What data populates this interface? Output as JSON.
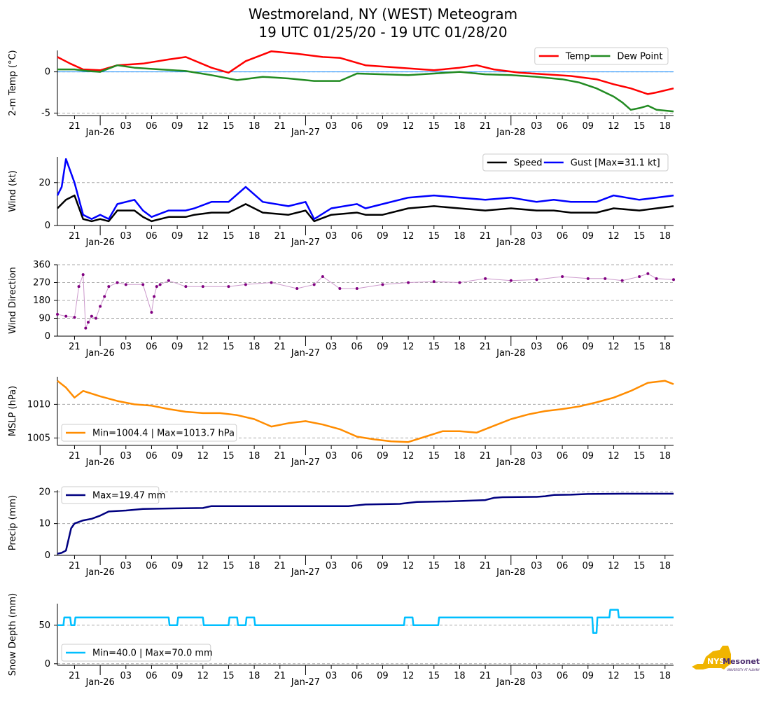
{
  "title": {
    "line1": "Westmoreland, NY (WEST) Meteogram",
    "line2": "19 UTC 01/25/20 - 19 UTC 01/28/20"
  },
  "logo": {
    "text": "NYS Mesonet",
    "subtext": "UNIVERSITY AT ALBANY"
  },
  "colors": {
    "temp": "#ff0000",
    "dew": "#228b22",
    "speed": "#000000",
    "gust": "#0000ff",
    "dir": "#800080",
    "mslp": "#ff8c00",
    "precip": "#000080",
    "snow": "#00bfff",
    "zero": "#1e90ff"
  },
  "x_axis": {
    "hour_ticks": [
      "21",
      "03",
      "06",
      "09",
      "12",
      "15",
      "18",
      "21",
      "03",
      "06",
      "09",
      "12",
      "15",
      "18",
      "21",
      "03",
      "06",
      "09",
      "12",
      "15",
      "18"
    ],
    "hour_offsets": [
      2,
      8,
      11,
      14,
      17,
      20,
      23,
      26,
      32,
      35,
      38,
      41,
      44,
      47,
      50,
      56,
      59,
      62,
      65,
      68,
      71
    ],
    "day_ticks": [
      "Jan-26",
      "Jan-27",
      "Jan-28"
    ],
    "day_offsets": [
      5,
      29,
      53
    ],
    "range_hours": [
      0,
      72
    ]
  },
  "chart_data": [
    {
      "type": "line",
      "ylabel": "2-m Temp ($^\\circ$C)",
      "ylim": [
        -5.3,
        2.6
      ],
      "yticks": [
        0,
        -5
      ],
      "legend": [
        "Temp",
        "Dew Point"
      ],
      "series": [
        {
          "name": "Temp",
          "x": [
            0,
            1.5,
            3,
            5,
            7,
            10,
            13,
            15,
            18,
            20,
            22,
            25,
            28,
            31,
            33,
            36,
            40,
            44,
            47,
            49,
            51,
            54,
            57,
            60,
            63,
            65,
            67,
            69,
            70,
            72
          ],
          "values": [
            1.8,
            1.0,
            0.3,
            0.2,
            0.8,
            1.0,
            1.5,
            1.8,
            0.5,
            -0.1,
            1.3,
            2.5,
            2.2,
            1.8,
            1.7,
            0.8,
            0.5,
            0.2,
            0.5,
            0.8,
            0.3,
            -0.1,
            -0.3,
            -0.5,
            -0.9,
            -1.5,
            -2.0,
            -2.7,
            -2.5,
            -2.0
          ]
        },
        {
          "name": "Dew Point",
          "x": [
            0,
            2,
            3.5,
            5,
            7,
            9,
            12,
            15,
            18,
            21,
            24,
            27,
            30,
            33,
            35,
            38,
            41,
            44,
            47,
            50,
            53,
            56,
            59,
            61,
            63,
            65,
            66,
            67,
            68,
            69,
            70,
            72
          ],
          "values": [
            0.3,
            0.3,
            0.1,
            0.0,
            0.8,
            0.5,
            0.3,
            0.1,
            -0.4,
            -1.0,
            -0.6,
            -0.8,
            -1.1,
            -1.1,
            -0.2,
            -0.3,
            -0.4,
            -0.2,
            0.0,
            -0.3,
            -0.4,
            -0.6,
            -0.9,
            -1.3,
            -2.0,
            -3.0,
            -3.7,
            -4.6,
            -4.4,
            -4.1,
            -4.6,
            -4.8
          ]
        }
      ]
    },
    {
      "type": "line",
      "ylabel": "Wind (kt)",
      "ylim": [
        0,
        32
      ],
      "yticks": [
        0,
        20
      ],
      "legend": [
        "Speed",
        "Gust [Max=31.1 kt]"
      ],
      "series": [
        {
          "name": "Speed",
          "x": [
            0,
            1,
            2,
            3,
            4,
            5,
            6,
            7,
            9,
            10,
            11,
            13,
            15,
            16,
            18,
            20,
            22,
            24,
            27,
            29,
            30,
            32,
            35,
            36,
            38,
            41,
            44,
            47,
            50,
            53,
            56,
            58,
            60,
            63,
            65,
            68,
            70,
            72
          ],
          "values": [
            8,
            12,
            14,
            3,
            2,
            3,
            2,
            7,
            7,
            4,
            2,
            4,
            4,
            5,
            6,
            6,
            10,
            6,
            5,
            7,
            2,
            5,
            6,
            5,
            5,
            8,
            9,
            8,
            7,
            8,
            7,
            7,
            6,
            6,
            8,
            7,
            8,
            9
          ]
        },
        {
          "name": "Gust [Max=31.1 kt]",
          "x": [
            0,
            0.5,
            1,
            2,
            3,
            4,
            5,
            6,
            7,
            9,
            10,
            11,
            13,
            15,
            16,
            18,
            20,
            22,
            24,
            27,
            29,
            30,
            32,
            35,
            36,
            38,
            41,
            44,
            47,
            50,
            53,
            56,
            58,
            60,
            63,
            65,
            68,
            70,
            72
          ],
          "values": [
            14,
            18,
            31,
            20,
            5,
            3,
            5,
            3,
            10,
            12,
            7,
            4,
            7,
            7,
            8,
            11,
            11,
            18,
            11,
            9,
            11,
            3,
            8,
            10,
            8,
            10,
            13,
            14,
            13,
            12,
            13,
            11,
            12,
            11,
            11,
            14,
            12,
            13,
            14
          ]
        }
      ]
    },
    {
      "type": "scatter",
      "ylabel": "Wind Direction",
      "ylim": [
        0,
        360
      ],
      "yticks": [
        0,
        90,
        180,
        270,
        360
      ],
      "series": [
        {
          "name": "Direction",
          "x": [
            0,
            1,
            2,
            2.5,
            3,
            3.3,
            3.6,
            4,
            4.5,
            5,
            5.5,
            6,
            7,
            8,
            10,
            11,
            11.3,
            11.6,
            12,
            13,
            15,
            17,
            20,
            22,
            25,
            28,
            30,
            31,
            33,
            35,
            38,
            41,
            44,
            47,
            50,
            53,
            56,
            59,
            62,
            64,
            66,
            68,
            69,
            70,
            72
          ],
          "values": [
            110,
            100,
            95,
            250,
            310,
            40,
            70,
            100,
            90,
            150,
            200,
            250,
            270,
            260,
            260,
            120,
            200,
            250,
            260,
            280,
            250,
            250,
            250,
            260,
            270,
            240,
            260,
            300,
            240,
            240,
            260,
            270,
            275,
            270,
            290,
            280,
            285,
            300,
            290,
            290,
            280,
            300,
            315,
            290,
            285
          ]
        }
      ]
    },
    {
      "type": "line",
      "ylabel": "MSLP (hPa)",
      "ylim": [
        1003.9,
        1014.1
      ],
      "yticks": [
        1005,
        1010
      ],
      "legend": [
        "Min=1004.4 | Max=1013.7 hPa"
      ],
      "series": [
        {
          "name": "MSLP",
          "x": [
            0,
            1,
            2,
            3,
            5,
            7,
            9,
            11,
            13,
            15,
            17,
            19,
            21,
            23,
            25,
            27,
            29,
            31,
            33,
            35,
            37,
            39,
            41,
            43,
            45,
            47,
            49,
            51,
            53,
            55,
            57,
            59,
            61,
            63,
            65,
            67,
            69,
            71,
            72
          ],
          "values": [
            1013.5,
            1012.5,
            1011.0,
            1012.0,
            1011.2,
            1010.5,
            1010.0,
            1009.8,
            1009.3,
            1008.9,
            1008.7,
            1008.7,
            1008.4,
            1007.8,
            1006.7,
            1007.2,
            1007.5,
            1007.0,
            1006.3,
            1005.2,
            1004.8,
            1004.5,
            1004.4,
            1005.2,
            1006.0,
            1006.0,
            1005.8,
            1006.8,
            1007.8,
            1008.5,
            1009.0,
            1009.3,
            1009.7,
            1010.3,
            1011.0,
            1012.0,
            1013.2,
            1013.5,
            1013.0
          ]
        }
      ]
    },
    {
      "type": "line",
      "ylabel": "Precip (mm)",
      "ylim": [
        0,
        20.5
      ],
      "yticks": [
        0,
        10,
        20
      ],
      "legend": [
        "Max=19.47 mm"
      ],
      "series": [
        {
          "name": "Precip",
          "x": [
            0,
            0.5,
            1,
            1.3,
            1.6,
            2,
            3,
            4,
            5,
            6,
            8,
            10,
            14,
            17,
            18,
            20,
            24,
            30,
            34,
            36,
            40,
            42,
            46,
            48,
            50,
            51,
            52,
            56,
            57,
            58,
            60,
            62,
            66,
            72
          ],
          "values": [
            0.5,
            0.8,
            1.5,
            5,
            8.5,
            10,
            11,
            11.5,
            12.5,
            13.8,
            14.1,
            14.6,
            14.8,
            14.9,
            15.5,
            15.5,
            15.5,
            15.5,
            15.5,
            16,
            16.2,
            16.8,
            17,
            17.2,
            17.4,
            18.1,
            18.3,
            18.4,
            18.6,
            19,
            19.1,
            19.3,
            19.4,
            19.4
          ]
        }
      ]
    },
    {
      "type": "line",
      "ylabel": "Snow Depth (mm)",
      "ylim": [
        -2,
        78
      ],
      "yticks": [
        0,
        50
      ],
      "legend": [
        "Min=40.0 | Max=70.0 mm"
      ],
      "series": [
        {
          "name": "Snow Depth",
          "x": [
            0,
            0.7,
            0.8,
            1.5,
            1.6,
            2.0,
            2.1,
            13,
            13.1,
            14,
            14.1,
            17,
            17.1,
            20,
            20.1,
            21,
            21.1,
            22,
            22.1,
            23,
            23.1,
            40.5,
            40.6,
            41.5,
            41.6,
            44.5,
            44.6,
            57.5,
            57.6,
            62.5,
            62.6,
            63,
            63.1,
            64.5,
            64.6,
            65.5,
            65.6,
            72
          ],
          "values": [
            50,
            50,
            60,
            60,
            50,
            50,
            60,
            60,
            50,
            50,
            60,
            60,
            50,
            50,
            60,
            60,
            50,
            50,
            60,
            60,
            50,
            50,
            60,
            60,
            50,
            50,
            60,
            60,
            60,
            60,
            40,
            40,
            60,
            60,
            70,
            70,
            60,
            60
          ]
        }
      ]
    }
  ]
}
